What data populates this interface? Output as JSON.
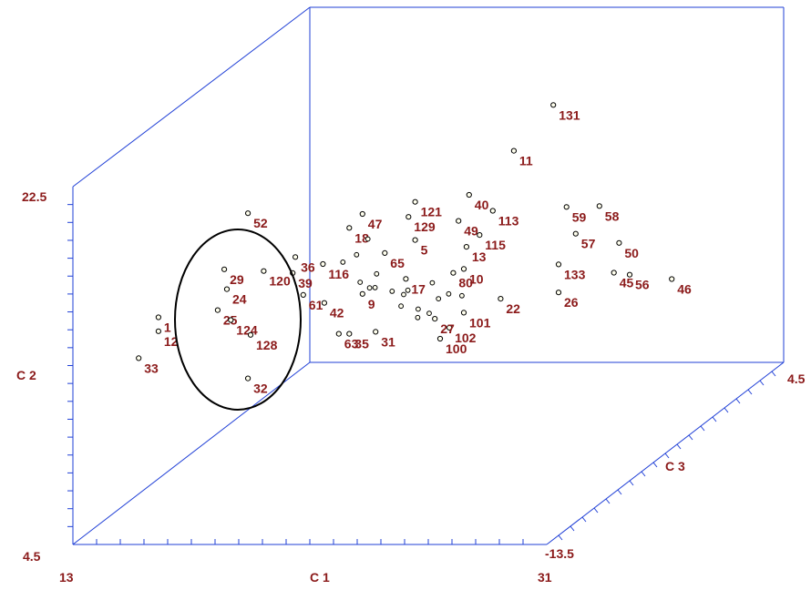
{
  "chart_data": {
    "type": "scatter",
    "projection": "3d",
    "axes": {
      "c1": {
        "label": "C 1",
        "min_label": "13",
        "max_label": "31",
        "range": [
          13,
          31
        ]
      },
      "c2": {
        "label": "C 2",
        "min_label": "4.5",
        "max_label": "22.5",
        "range": [
          4.5,
          22.5
        ]
      },
      "c3": {
        "label": "C 3",
        "min_label": "-13.5",
        "max_label": "4.5",
        "range": [
          -13.5,
          4.5
        ]
      }
    },
    "annotation": "ellipse around points 1, 12, 24, 25, 29, 33, 120, 124, 128",
    "colors": {
      "axis": "#1f3fd6",
      "label": "#8b1a1a",
      "marker_fill": "#ffffee"
    },
    "points": [
      {
        "id": "131",
        "c1": 22.4,
        "c2": 17.6,
        "c3": 4.2
      },
      {
        "id": "11",
        "c1": 21.0,
        "c2": 15.4,
        "c3": 4.0
      },
      {
        "id": "40",
        "c1": 20.3,
        "c2": 14.2,
        "c3": 2.0
      },
      {
        "id": "47",
        "c1": 17.0,
        "c2": 14.0,
        "c3": 0.5
      },
      {
        "id": "121",
        "c1": 18.5,
        "c2": 14.1,
        "c3": 1.5
      },
      {
        "id": "52",
        "c1": 13.4,
        "c2": 14.8,
        "c3": -1.0
      },
      {
        "id": "59",
        "c1": 24.5,
        "c2": 14.1,
        "c3": 1.0
      },
      {
        "id": "58",
        "c1": 26.0,
        "c2": 14.4,
        "c3": 0.5
      },
      {
        "id": "49",
        "c1": 20.4,
        "c2": 13.4,
        "c3": 1.0
      },
      {
        "id": "113",
        "c1": 21.2,
        "c2": 13.4,
        "c3": 2.0
      },
      {
        "id": "115",
        "c1": 21.7,
        "c2": 13.2,
        "c3": 0.0
      },
      {
        "id": "129",
        "c1": 18.5,
        "c2": 13.6,
        "c3": 1.0
      },
      {
        "id": "18",
        "c1": 16.5,
        "c2": 13.3,
        "c3": 0.5
      },
      {
        "id": "50",
        "c1": 27.0,
        "c2": 12.8,
        "c3": 0.0
      },
      {
        "id": "13",
        "c1": 21.2,
        "c2": 12.6,
        "c3": 0.0
      },
      {
        "id": "10",
        "c1": 21.6,
        "c2": 12.0,
        "c3": -1.0
      },
      {
        "id": "46",
        "c1": 30.0,
        "c2": 12.0,
        "c3": -2.0
      },
      {
        "id": "29",
        "c1": 13.5,
        "c2": 13.0,
        "c3": -3.0
      },
      {
        "id": "36",
        "c1": 15.2,
        "c2": 12.6,
        "c3": -1.0
      },
      {
        "id": "120",
        "c1": 14.5,
        "c2": 12.4,
        "c3": -2.0
      },
      {
        "id": "24",
        "c1": 13.6,
        "c2": 12.0,
        "c3": -3.0
      },
      {
        "id": "1",
        "c1": 12.0,
        "c2": 11.6,
        "c3": -5.0
      },
      {
        "id": "25",
        "c1": 13.5,
        "c2": 11.2,
        "c3": -3.5
      },
      {
        "id": "124",
        "c1": 14.0,
        "c2": 10.7,
        "c3": -3.5
      },
      {
        "id": "12",
        "c1": 12.0,
        "c2": 10.9,
        "c3": -5.0
      },
      {
        "id": "128",
        "c1": 14.5,
        "c2": 9.7,
        "c3": -3.0
      },
      {
        "id": "33",
        "c1": 11.5,
        "c2": 9.8,
        "c3": -5.5
      },
      {
        "id": "32",
        "c1": 13.9,
        "c2": 7.0,
        "c3": -2.0
      },
      {
        "id": "57",
        "c1": 24.6,
        "c2": 12.5,
        "c3": 1.5
      },
      {
        "id": "45",
        "c1": 26.8,
        "c2": 11.3,
        "c3": 0.0
      },
      {
        "id": "56",
        "c1": 27.4,
        "c2": 11.2,
        "c3": 0.0
      },
      {
        "id": "22",
        "c1": 23.0,
        "c2": 10.5,
        "c3": -1.0
      },
      {
        "id": "133",
        "c1": 23.7,
        "c2": 10.7,
        "c3": 2.0
      },
      {
        "id": "26",
        "c1": 24.2,
        "c2": 9.8,
        "c3": 1.0
      },
      {
        "id": "101",
        "c1": 21.6,
        "c2": 9.8,
        "c3": -1.0
      },
      {
        "id": "102",
        "c1": 21.3,
        "c2": 9.3,
        "c3": -1.5
      },
      {
        "id": "100",
        "c1": 21.2,
        "c2": 9.0,
        "c3": -2.0
      },
      {
        "id": "42",
        "c1": 16.8,
        "c2": 10.8,
        "c3": -2.0
      },
      {
        "id": "61",
        "c1": 16.0,
        "c2": 11.2,
        "c3": -2.0
      },
      {
        "id": "65",
        "c1": 18.6,
        "c2": 12.8,
        "c3": -1.0
      },
      {
        "id": "5",
        "c1": 19.5,
        "c2": 13.2,
        "c3": -0.5
      },
      {
        "id": "80",
        "c1": 21.2,
        "c2": 11.8,
        "c3": -1.0
      },
      {
        "id": "31",
        "c1": 19.0,
        "c2": 9.6,
        "c3": -2.5
      },
      {
        "id": "63",
        "c1": 17.6,
        "c2": 9.5,
        "c3": -2.5
      },
      {
        "id": "35",
        "c1": 18.0,
        "c2": 9.5,
        "c3": -2.5
      },
      {
        "id": "27",
        "c1": 21.0,
        "c2": 10.0,
        "c3": -2.0
      },
      {
        "id": "39",
        "c1": 15.6,
        "c2": 12.3,
        "c3": -2.0
      },
      {
        "id": "116",
        "c1": 16.5,
        "c2": 12.5,
        "c3": -1.5
      },
      {
        "id": "9",
        "c1": 18.0,
        "c2": 11.0,
        "c3": -1.5
      },
      {
        "id": "17",
        "c1": 19.4,
        "c2": 11.5,
        "c3": -1.0
      }
    ],
    "unlabeled_markers": 18
  }
}
